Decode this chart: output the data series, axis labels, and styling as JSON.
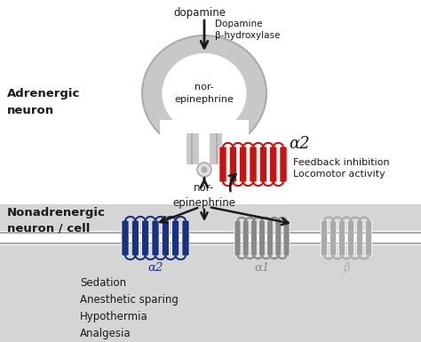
{
  "bg_color": "#ffffff",
  "neuron_body_color": "#c8c8c8",
  "neuron_body_edge": "#aaaaaa",
  "arrow_color": "#1a1a1a",
  "text_color": "#1a1a1a",
  "adrenergic_label": "Adrenergic\nneuron",
  "nonadrenergic_label": "Nonadrenergic\nneuron / cell",
  "dopamine_label": "dopamine",
  "enzyme_label": "Dopamine\nβ-hydroxylase",
  "nor_epi_label1": "nor-\nepinephrine",
  "nor_epi_label2": "nor-\nepinephrine",
  "alpha2_label_top": "α2",
  "feedback_label": "Feedback inhibition\nLocomotor activity",
  "alpha2_label_bot": "α2",
  "alpha1_label": "α1",
  "beta_label": "β",
  "effects_label": "Sedation\nAnesthetic sparing\nHypothermia\nAnalgesia",
  "receptor_red_color": "#cc1111",
  "receptor_blue_color": "#1a3080",
  "receptor_gray_color": "#888888",
  "receptor_gray_light": "#aaaaaa",
  "bottom_bg": "#d5d5d5"
}
